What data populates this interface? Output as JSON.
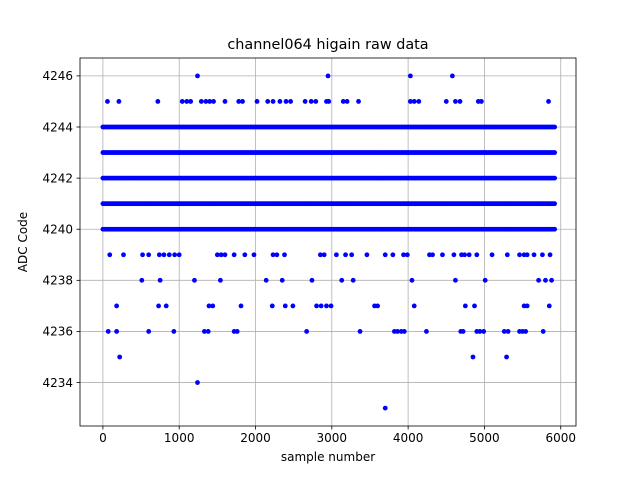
{
  "chart_data": {
    "type": "scatter",
    "title": "channel064 higain raw data",
    "xlabel": "sample number",
    "ylabel": "ADC Code",
    "xlim": [
      -300,
      6200
    ],
    "ylim": [
      4232.3,
      4246.7
    ],
    "xticks": [
      0,
      1000,
      2000,
      3000,
      4000,
      5000,
      6000
    ],
    "yticks": [
      4234,
      4236,
      4238,
      4240,
      4242,
      4244,
      4246
    ],
    "grid": true,
    "marker_color": "#0000ff",
    "dense_levels": [
      4240,
      4241,
      4242,
      4243,
      4244
    ],
    "dense_x_range": [
      0,
      5930
    ],
    "points": [
      [
        1240,
        4246
      ],
      [
        2950,
        4246
      ],
      [
        4030,
        4246
      ],
      [
        4580,
        4246
      ],
      [
        60,
        4245
      ],
      [
        210,
        4245
      ],
      [
        720,
        4245
      ],
      [
        1040,
        4245
      ],
      [
        1100,
        4245
      ],
      [
        1150,
        4245
      ],
      [
        1290,
        4245
      ],
      [
        1350,
        4245
      ],
      [
        1400,
        4245
      ],
      [
        1450,
        4245
      ],
      [
        1600,
        4245
      ],
      [
        1780,
        4245
      ],
      [
        1830,
        4245
      ],
      [
        2020,
        4245
      ],
      [
        2160,
        4245
      ],
      [
        2230,
        4245
      ],
      [
        2320,
        4245
      ],
      [
        2400,
        4245
      ],
      [
        2460,
        4245
      ],
      [
        2650,
        4245
      ],
      [
        2730,
        4245
      ],
      [
        2790,
        4245
      ],
      [
        2930,
        4245
      ],
      [
        2960,
        4245
      ],
      [
        3150,
        4245
      ],
      [
        3200,
        4245
      ],
      [
        3350,
        4245
      ],
      [
        4030,
        4245
      ],
      [
        4080,
        4245
      ],
      [
        4140,
        4245
      ],
      [
        4500,
        4245
      ],
      [
        4620,
        4245
      ],
      [
        4680,
        4245
      ],
      [
        4920,
        4245
      ],
      [
        4960,
        4245
      ],
      [
        5840,
        4245
      ],
      [
        90,
        4239
      ],
      [
        270,
        4239
      ],
      [
        520,
        4239
      ],
      [
        600,
        4239
      ],
      [
        740,
        4239
      ],
      [
        800,
        4239
      ],
      [
        870,
        4239
      ],
      [
        940,
        4239
      ],
      [
        1000,
        4239
      ],
      [
        1500,
        4239
      ],
      [
        1550,
        4239
      ],
      [
        1600,
        4239
      ],
      [
        1720,
        4239
      ],
      [
        1860,
        4239
      ],
      [
        1980,
        4239
      ],
      [
        2230,
        4239
      ],
      [
        2280,
        4239
      ],
      [
        2380,
        4239
      ],
      [
        2850,
        4239
      ],
      [
        2900,
        4239
      ],
      [
        3060,
        4239
      ],
      [
        3180,
        4239
      ],
      [
        3260,
        4239
      ],
      [
        3460,
        4239
      ],
      [
        3700,
        4239
      ],
      [
        3800,
        4239
      ],
      [
        3940,
        4239
      ],
      [
        3990,
        4239
      ],
      [
        4280,
        4239
      ],
      [
        4320,
        4239
      ],
      [
        4450,
        4239
      ],
      [
        4600,
        4239
      ],
      [
        4700,
        4239
      ],
      [
        4740,
        4239
      ],
      [
        4800,
        4239
      ],
      [
        4900,
        4239
      ],
      [
        5100,
        4239
      ],
      [
        5300,
        4239
      ],
      [
        5460,
        4239
      ],
      [
        5520,
        4239
      ],
      [
        5560,
        4239
      ],
      [
        5650,
        4239
      ],
      [
        5760,
        4239
      ],
      [
        5860,
        4239
      ],
      [
        510,
        4238
      ],
      [
        750,
        4238
      ],
      [
        1200,
        4238
      ],
      [
        1540,
        4238
      ],
      [
        2140,
        4238
      ],
      [
        2350,
        4238
      ],
      [
        2740,
        4238
      ],
      [
        3130,
        4238
      ],
      [
        3280,
        4238
      ],
      [
        4050,
        4238
      ],
      [
        4620,
        4238
      ],
      [
        5010,
        4238
      ],
      [
        5710,
        4238
      ],
      [
        5800,
        4238
      ],
      [
        5880,
        4238
      ],
      [
        180,
        4237
      ],
      [
        730,
        4237
      ],
      [
        830,
        4237
      ],
      [
        1390,
        4237
      ],
      [
        1440,
        4237
      ],
      [
        1810,
        4237
      ],
      [
        2220,
        4237
      ],
      [
        2390,
        4237
      ],
      [
        2490,
        4237
      ],
      [
        2800,
        4237
      ],
      [
        2860,
        4237
      ],
      [
        2930,
        4237
      ],
      [
        2990,
        4237
      ],
      [
        3560,
        4237
      ],
      [
        3600,
        4237
      ],
      [
        4080,
        4237
      ],
      [
        4750,
        4237
      ],
      [
        4870,
        4237
      ],
      [
        5520,
        4237
      ],
      [
        5560,
        4237
      ],
      [
        5850,
        4237
      ],
      [
        70,
        4236
      ],
      [
        180,
        4236
      ],
      [
        600,
        4236
      ],
      [
        930,
        4236
      ],
      [
        1330,
        4236
      ],
      [
        1380,
        4236
      ],
      [
        1720,
        4236
      ],
      [
        1760,
        4236
      ],
      [
        2670,
        4236
      ],
      [
        3370,
        4236
      ],
      [
        3820,
        4236
      ],
      [
        3860,
        4236
      ],
      [
        3910,
        4236
      ],
      [
        3950,
        4236
      ],
      [
        4240,
        4236
      ],
      [
        4690,
        4236
      ],
      [
        4720,
        4236
      ],
      [
        4900,
        4236
      ],
      [
        4940,
        4236
      ],
      [
        4990,
        4236
      ],
      [
        5260,
        4236
      ],
      [
        5310,
        4236
      ],
      [
        5460,
        4236
      ],
      [
        5500,
        4236
      ],
      [
        5540,
        4236
      ],
      [
        5770,
        4236
      ],
      [
        220,
        4235
      ],
      [
        4850,
        4235
      ],
      [
        5290,
        4235
      ],
      [
        1240,
        4234
      ],
      [
        3700,
        4233
      ]
    ]
  }
}
